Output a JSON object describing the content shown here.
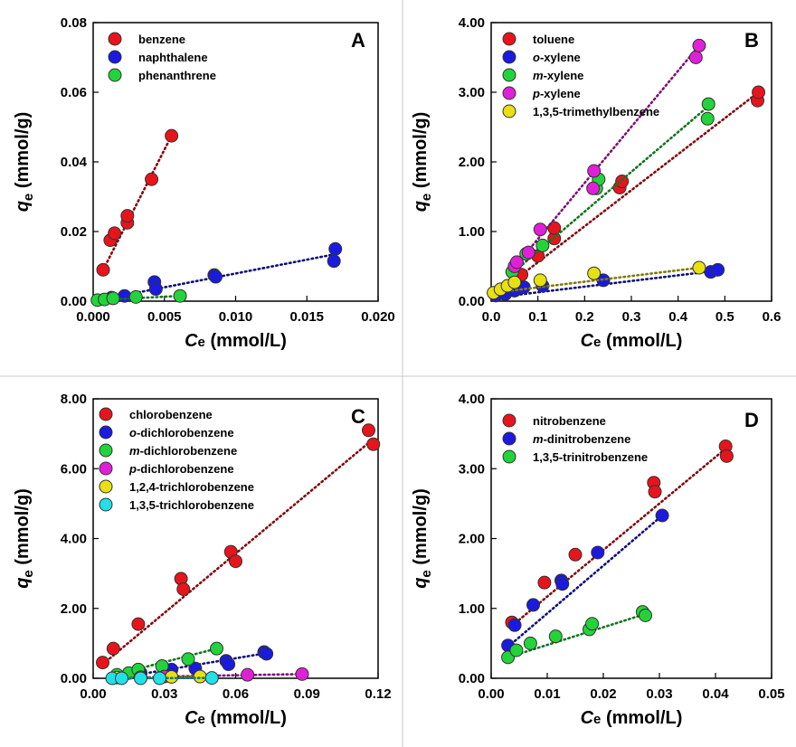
{
  "chart_data": [
    {
      "panel": "A",
      "type": "scatter",
      "xlabel": {
        "italic": "C",
        "sub": "e",
        "unit": " (mmol/L)"
      },
      "ylabel": {
        "italic": "q",
        "sub": "e",
        "unit": " (mmol/g)"
      },
      "xlim": [
        0,
        0.02
      ],
      "ylim": [
        0,
        0.08
      ],
      "xticks": [
        "0.000",
        "0.005",
        "0.010",
        "0.015",
        "0.020"
      ],
      "yticks": [
        "0.00",
        "0.02",
        "0.04",
        "0.06",
        "0.08"
      ],
      "legend_position": "top-left",
      "series": [
        {
          "name": "benzene",
          "color": "#e8141b",
          "points": [
            [
              0.0007,
              0.009
            ],
            [
              0.0012,
              0.0175
            ],
            [
              0.0015,
              0.0195
            ],
            [
              0.0024,
              0.0225
            ],
            [
              0.0024,
              0.0245
            ],
            [
              0.0041,
              0.035
            ],
            [
              0.0055,
              0.0475
            ]
          ],
          "fit": [
            [
              0.0007,
              0.009
            ],
            [
              0.0055,
              0.0475
            ]
          ]
        },
        {
          "name": "naphthalene",
          "color": "#1a1ae0",
          "points": [
            [
              0.0013,
              0.001
            ],
            [
              0.0022,
              0.0015
            ],
            [
              0.0043,
              0.0055
            ],
            [
              0.0044,
              0.0035
            ],
            [
              0.0085,
              0.0075
            ],
            [
              0.0086,
              0.007
            ],
            [
              0.017,
              0.015
            ],
            [
              0.0169,
              0.0115
            ]
          ],
          "fit": [
            [
              0.001,
              0.0008
            ],
            [
              0.017,
              0.0135
            ]
          ]
        },
        {
          "name": "phenanthrene",
          "color": "#22d43a",
          "points": [
            [
              0.0003,
              0.0003
            ],
            [
              0.0008,
              0.0005
            ],
            [
              0.0014,
              0.0008
            ],
            [
              0.003,
              0.0012
            ],
            [
              0.0061,
              0.0015
            ]
          ],
          "fit": [
            [
              0.0003,
              0.0003
            ],
            [
              0.0061,
              0.0015
            ]
          ]
        }
      ]
    },
    {
      "panel": "B",
      "type": "scatter",
      "xlabel": {
        "italic": "C",
        "sub": "e",
        "unit": " (mmol/L)"
      },
      "ylabel": {
        "italic": "q",
        "sub": "e",
        "unit": " (mmol/g)"
      },
      "xlim": [
        0,
        0.6
      ],
      "ylim": [
        0,
        4
      ],
      "xticks": [
        "0.0",
        "0.1",
        "0.2",
        "0.3",
        "0.4",
        "0.5",
        "0.6"
      ],
      "yticks": [
        "0.00",
        "1.00",
        "2.00",
        "3.00",
        "4.00"
      ],
      "legend_position": "top-left",
      "series": [
        {
          "name": "toluene",
          "italic_prefix": "",
          "color": "#e8141b",
          "points": [
            [
              0.065,
              0.38
            ],
            [
              0.1,
              0.65
            ],
            [
              0.135,
              0.9
            ],
            [
              0.135,
              1.05
            ],
            [
              0.275,
              1.63
            ],
            [
              0.28,
              1.72
            ],
            [
              0.57,
              2.88
            ],
            [
              0.572,
              3.0
            ]
          ],
          "fit": [
            [
              0.05,
              0.3
            ],
            [
              0.572,
              3.0
            ]
          ]
        },
        {
          "name": "-xylene",
          "italic_prefix": "o",
          "color": "#1a1ae0",
          "points": [
            [
              0.01,
              0.08
            ],
            [
              0.03,
              0.1
            ],
            [
              0.05,
              0.15
            ],
            [
              0.07,
              0.2
            ],
            [
              0.11,
              0.22
            ],
            [
              0.24,
              0.3
            ],
            [
              0.47,
              0.42
            ],
            [
              0.485,
              0.45
            ]
          ],
          "fit": [
            [
              0.005,
              0.05
            ],
            [
              0.485,
              0.44
            ]
          ]
        },
        {
          "name": "-xylene",
          "italic_prefix": "m",
          "color": "#22d43a",
          "points": [
            [
              0.045,
              0.42
            ],
            [
              0.075,
              0.68
            ],
            [
              0.11,
              0.8
            ],
            [
              0.225,
              1.62
            ],
            [
              0.23,
              1.75
            ],
            [
              0.463,
              2.62
            ],
            [
              0.465,
              2.83
            ]
          ],
          "fit": [
            [
              0.045,
              0.4
            ],
            [
              0.465,
              2.8
            ]
          ]
        },
        {
          "name": "-xylene",
          "italic_prefix": "p",
          "color": "#e020d8",
          "points": [
            [
              0.05,
              0.5
            ],
            [
              0.055,
              0.56
            ],
            [
              0.08,
              0.7
            ],
            [
              0.105,
              1.03
            ],
            [
              0.218,
              1.62
            ],
            [
              0.22,
              1.87
            ],
            [
              0.438,
              3.5
            ],
            [
              0.445,
              3.67
            ]
          ],
          "fit": [
            [
              0.045,
              0.45
            ],
            [
              0.445,
              3.67
            ]
          ]
        },
        {
          "name": "1,3,5-trimethylbenzene",
          "italic_prefix": "",
          "color": "#e8e010",
          "points": [
            [
              0.005,
              0.12
            ],
            [
              0.02,
              0.17
            ],
            [
              0.035,
              0.22
            ],
            [
              0.05,
              0.27
            ],
            [
              0.105,
              0.3
            ],
            [
              0.22,
              0.4
            ],
            [
              0.445,
              0.48
            ]
          ],
          "fit": [
            [
              0.005,
              0.12
            ],
            [
              0.445,
              0.48
            ]
          ]
        }
      ]
    },
    {
      "panel": "C",
      "type": "scatter",
      "xlabel": {
        "italic": "C",
        "sub": "e",
        "unit": " (mmol/L)"
      },
      "ylabel": {
        "italic": "q",
        "sub": "e",
        "unit": " (mmol/g)"
      },
      "xlim": [
        0,
        0.12
      ],
      "ylim": [
        0,
        8
      ],
      "xticks": [
        "0.00",
        "0.03",
        "0.06",
        "0.09",
        "0.12"
      ],
      "yticks": [
        "0.00",
        "2.00",
        "4.00",
        "6.00",
        "8.00"
      ],
      "legend_position": "top-left",
      "series": [
        {
          "name": "chlorobenzene",
          "italic_prefix": "",
          "color": "#e8141b",
          "points": [
            [
              0.004,
              0.45
            ],
            [
              0.0085,
              0.85
            ],
            [
              0.019,
              1.55
            ],
            [
              0.037,
              2.85
            ],
            [
              0.038,
              2.55
            ],
            [
              0.058,
              3.62
            ],
            [
              0.06,
              3.35
            ],
            [
              0.116,
              7.1
            ],
            [
              0.118,
              6.7
            ]
          ],
          "fit": [
            [
              0.004,
              0.4
            ],
            [
              0.118,
              6.85
            ]
          ]
        },
        {
          "name": "-dichlorobenzene",
          "italic_prefix": "o",
          "color": "#1a1ae0",
          "points": [
            [
              0.02,
              0.15
            ],
            [
              0.033,
              0.25
            ],
            [
              0.043,
              0.28
            ],
            [
              0.056,
              0.5
            ],
            [
              0.057,
              0.4
            ],
            [
              0.072,
              0.75
            ],
            [
              0.073,
              0.7
            ]
          ],
          "fit": [
            [
              0.02,
              0.12
            ],
            [
              0.073,
              0.72
            ]
          ]
        },
        {
          "name": "-dichlorobenzene",
          "italic_prefix": "m",
          "color": "#22d43a",
          "points": [
            [
              0.01,
              0.1
            ],
            [
              0.015,
              0.15
            ],
            [
              0.019,
              0.25
            ],
            [
              0.029,
              0.35
            ],
            [
              0.04,
              0.55
            ],
            [
              0.052,
              0.85
            ]
          ],
          "fit": [
            [
              0.008,
              0.08
            ],
            [
              0.052,
              0.85
            ]
          ]
        },
        {
          "name": "-dichlorobenzene",
          "italic_prefix": "p",
          "color": "#e020d8",
          "points": [
            [
              0.03,
              0.05
            ],
            [
              0.065,
              0.1
            ],
            [
              0.088,
              0.12
            ]
          ],
          "fit": [
            [
              0.03,
              0.05
            ],
            [
              0.088,
              0.12
            ]
          ]
        },
        {
          "name": "1,2,4-trichlorobenzene",
          "italic_prefix": "",
          "color": "#e8e010",
          "points": [
            [
              0.01,
              0.02
            ],
            [
              0.02,
              0.03
            ],
            [
              0.033,
              0.04
            ],
            [
              0.045,
              0.05
            ]
          ],
          "fit": [
            [
              0.01,
              0.02
            ],
            [
              0.045,
              0.05
            ]
          ]
        },
        {
          "name": "1,3,5-trichlorobenzene",
          "italic_prefix": "",
          "color": "#22e0e8",
          "points": [
            [
              0.008,
              0.0
            ],
            [
              0.012,
              0.0
            ],
            [
              0.02,
              0.0
            ],
            [
              0.028,
              0.0
            ],
            [
              0.05,
              0.01
            ]
          ],
          "fit": [
            [
              0.008,
              0.0
            ],
            [
              0.05,
              0.01
            ]
          ]
        }
      ]
    },
    {
      "panel": "D",
      "type": "scatter",
      "xlabel": {
        "italic": "C",
        "sub": "e",
        "unit": " (mmol/L)"
      },
      "ylabel": {
        "italic": "q",
        "sub": "e",
        "unit": " (mmol/g)"
      },
      "xlim": [
        0,
        0.05
      ],
      "ylim": [
        0,
        4
      ],
      "xticks": [
        "0.00",
        "0.01",
        "0.02",
        "0.03",
        "0.04",
        "0.05"
      ],
      "yticks": [
        "0.00",
        "1.00",
        "2.00",
        "3.00",
        "4.00"
      ],
      "legend_position": "top-left",
      "series": [
        {
          "name": "nitrobenzene",
          "italic_prefix": "",
          "color": "#e8141b",
          "points": [
            [
              0.0037,
              0.8
            ],
            [
              0.0095,
              1.37
            ],
            [
              0.015,
              1.77
            ],
            [
              0.029,
              2.8
            ],
            [
              0.0292,
              2.67
            ],
            [
              0.0418,
              3.32
            ],
            [
              0.042,
              3.18
            ]
          ],
          "fit": [
            [
              0.0037,
              0.75
            ],
            [
              0.042,
              3.3
            ]
          ]
        },
        {
          "name": "-dinitrobenzene",
          "italic_prefix": "m",
          "color": "#1a1ae0",
          "points": [
            [
              0.003,
              0.47
            ],
            [
              0.0042,
              0.76
            ],
            [
              0.0075,
              1.05
            ],
            [
              0.0125,
              1.4
            ],
            [
              0.0127,
              1.35
            ],
            [
              0.019,
              1.8
            ],
            [
              0.0305,
              2.33
            ]
          ],
          "fit": [
            [
              0.003,
              0.45
            ],
            [
              0.0305,
              2.33
            ]
          ]
        },
        {
          "name": "1,3,5-trinitrobenzene",
          "italic_prefix": "",
          "color": "#22d43a",
          "points": [
            [
              0.003,
              0.3
            ],
            [
              0.0045,
              0.4
            ],
            [
              0.007,
              0.5
            ],
            [
              0.0115,
              0.6
            ],
            [
              0.0175,
              0.7
            ],
            [
              0.018,
              0.78
            ],
            [
              0.027,
              0.95
            ],
            [
              0.0275,
              0.9
            ]
          ],
          "fit": [
            [
              0.003,
              0.3
            ],
            [
              0.0275,
              0.92
            ]
          ]
        }
      ]
    }
  ]
}
